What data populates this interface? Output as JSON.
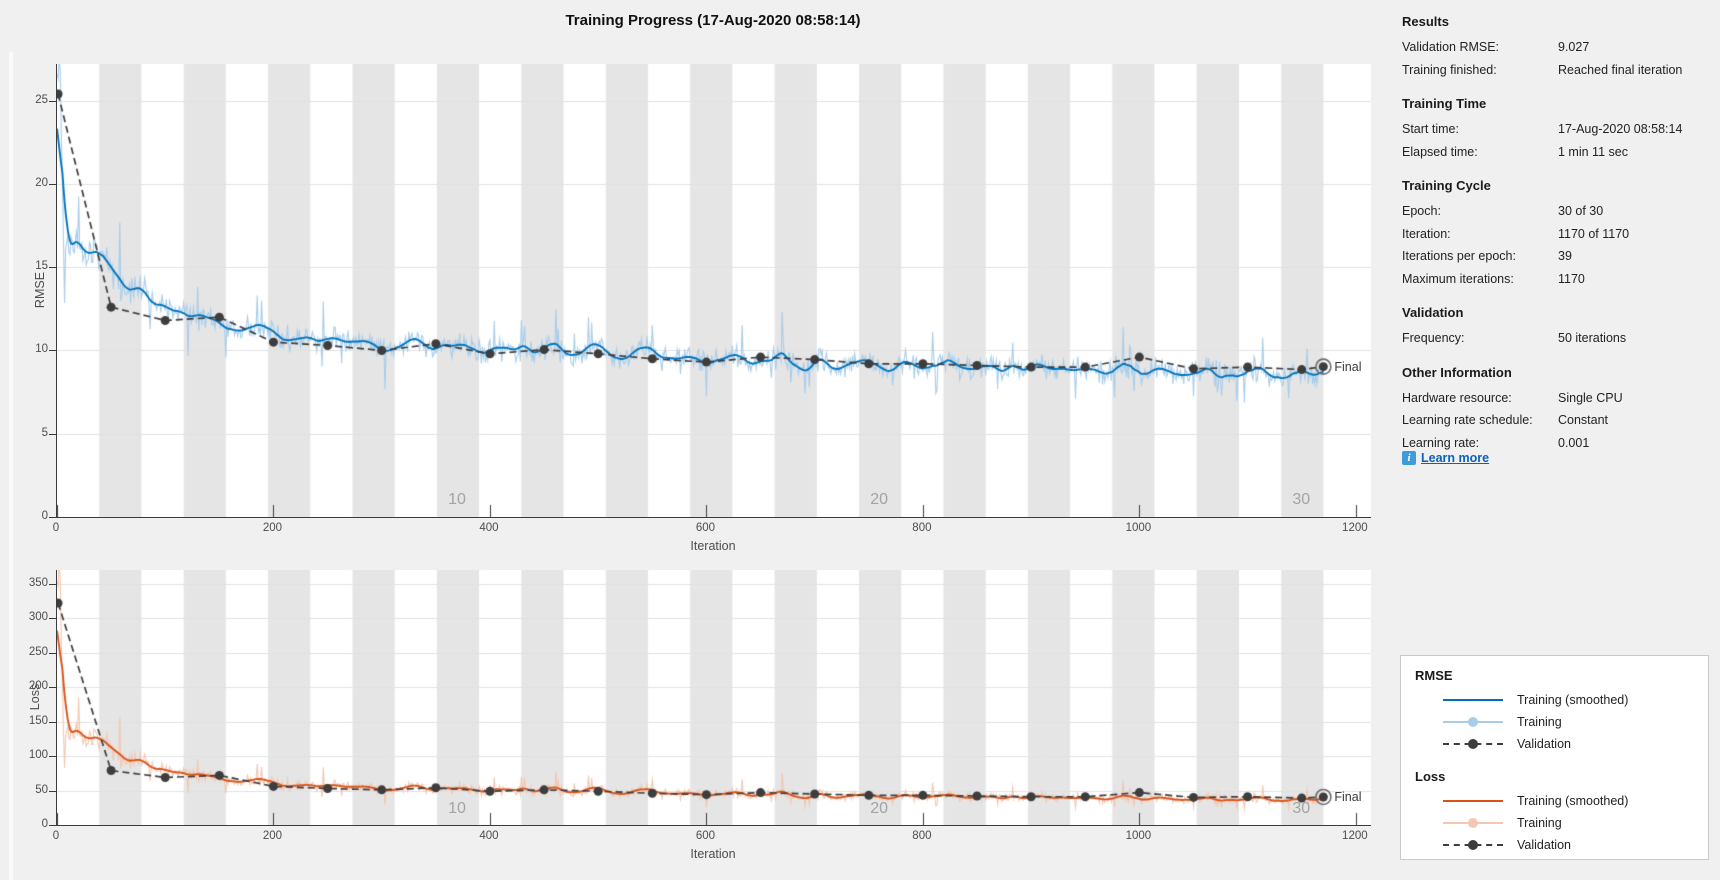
{
  "title": "Training Progress (17-Aug-2020 08:58:14)",
  "colors": {
    "background": "#F0F0F0",
    "plot_background": "#FFFFFF",
    "epoch_band": "#E5E5E5",
    "gridline": "#E2E2E2",
    "axis": "#3B3B3B",
    "tick_label": "#4D4D4D",
    "rmse_smoothed": "#0072BD",
    "rmse_training": "#A8CDEA",
    "loss_smoothed": "#D95319",
    "loss_training": "#F3C7B1",
    "validation": "#3D3D3D",
    "final_ring": "#6B6B6B",
    "epoch_label": "#A3A3A3",
    "link": "#0B61C2",
    "info_icon_bg": "#3E9CDB"
  },
  "results_panel": {
    "sections": [
      {
        "header": "Results",
        "rows": [
          {
            "label": "Validation RMSE:",
            "value": "9.027"
          },
          {
            "label": "Training finished:",
            "value": "Reached final iteration"
          }
        ]
      },
      {
        "header": "Training Time",
        "rows": [
          {
            "label": "Start time:",
            "value": "17-Aug-2020 08:58:14"
          },
          {
            "label": "Elapsed time:",
            "value": "1 min 11 sec"
          }
        ]
      },
      {
        "header": "Training Cycle",
        "rows": [
          {
            "label": "Epoch:",
            "value": "30 of 30"
          },
          {
            "label": "Iteration:",
            "value": "1170 of 1170"
          },
          {
            "label": "Iterations per epoch:",
            "value": "39"
          },
          {
            "label": "Maximum iterations:",
            "value": "1170"
          }
        ]
      },
      {
        "header": "Validation",
        "rows": [
          {
            "label": "Frequency:",
            "value": "50 iterations"
          }
        ]
      },
      {
        "header": "Other Information",
        "rows": [
          {
            "label": "Hardware resource:",
            "value": "Single CPU"
          },
          {
            "label": "Learning rate schedule:",
            "value": "Constant"
          },
          {
            "label": "Learning rate:",
            "value": "0.001"
          }
        ]
      }
    ],
    "learn_more": "Learn more",
    "info_icon_glyph": "i"
  },
  "legend": {
    "groups": [
      {
        "header": "RMSE",
        "items": [
          {
            "label": "Training (smoothed)",
            "style": "solid",
            "color": "#0072BD"
          },
          {
            "label": "Training",
            "style": "solid-dot",
            "color": "#A8CDEA"
          },
          {
            "label": "Validation",
            "style": "dashed-dot",
            "color": "#3D3D3D"
          }
        ]
      },
      {
        "header": "Loss",
        "items": [
          {
            "label": "Training (smoothed)",
            "style": "solid",
            "color": "#D95319"
          },
          {
            "label": "Training",
            "style": "solid-dot",
            "color": "#F3C7B1"
          },
          {
            "label": "Validation",
            "style": "dashed-dot",
            "color": "#3D3D3D"
          }
        ]
      }
    ]
  },
  "chart_data": [
    {
      "type": "line",
      "ylabel": "RMSE",
      "xlabel": "Iteration",
      "xlim": [
        0,
        1214
      ],
      "ylim": [
        0,
        27.2
      ],
      "xticks": [
        0,
        200,
        400,
        600,
        800,
        1000,
        1200
      ],
      "yticks": [
        0,
        5,
        10,
        15,
        20,
        25
      ],
      "epochs": 30,
      "iterations_per_epoch": 39,
      "epoch_labels": [
        10,
        20,
        30
      ],
      "grid": true,
      "series": [
        {
          "name": "Training (smoothed)",
          "source": "smoothed"
        },
        {
          "name": "Training",
          "source": "noisy"
        },
        {
          "name": "Validation",
          "points": [
            [
              1,
              25.4
            ],
            [
              50,
              12.6
            ],
            [
              100,
              11.8
            ],
            [
              150,
              12.0
            ],
            [
              200,
              10.5
            ],
            [
              250,
              10.3
            ],
            [
              300,
              10.0
            ],
            [
              350,
              10.4
            ],
            [
              400,
              9.8
            ],
            [
              450,
              10.05
            ],
            [
              500,
              9.8
            ],
            [
              550,
              9.5
            ],
            [
              600,
              9.3
            ],
            [
              650,
              9.6
            ],
            [
              700,
              9.45
            ],
            [
              750,
              9.2
            ],
            [
              800,
              9.2
            ],
            [
              850,
              9.1
            ],
            [
              900,
              9.0
            ],
            [
              950,
              9.0
            ],
            [
              1000,
              9.6
            ],
            [
              1050,
              8.9
            ],
            [
              1100,
              9.0
            ],
            [
              1150,
              8.85
            ],
            [
              1170,
              9.027
            ]
          ]
        }
      ],
      "training_base_anchors": [
        [
          0,
          26.8
        ],
        [
          3,
          27.2
        ],
        [
          6,
          16.1
        ],
        [
          25,
          16.0
        ],
        [
          45,
          15.7
        ],
        [
          55,
          14.0
        ],
        [
          65,
          13.3
        ],
        [
          75,
          14.0
        ],
        [
          90,
          12.8
        ],
        [
          105,
          12.3
        ],
        [
          120,
          12.5
        ],
        [
          135,
          11.7
        ],
        [
          150,
          12.1
        ],
        [
          165,
          11.1
        ],
        [
          180,
          11.5
        ],
        [
          200,
          11.0
        ],
        [
          215,
          10.35
        ],
        [
          235,
          10.7
        ],
        [
          255,
          10.9
        ],
        [
          270,
          10.3
        ],
        [
          285,
          10.7
        ],
        [
          300,
          10.05
        ],
        [
          330,
          10.55
        ],
        [
          350,
          10.0
        ],
        [
          370,
          10.5
        ],
        [
          395,
          9.9
        ],
        [
          415,
          10.3
        ],
        [
          435,
          9.7
        ],
        [
          455,
          10.3
        ],
        [
          475,
          9.6
        ],
        [
          500,
          10.1
        ],
        [
          520,
          9.5
        ],
        [
          540,
          10.0
        ],
        [
          560,
          9.4
        ],
        [
          580,
          9.85
        ],
        [
          600,
          9.25
        ],
        [
          625,
          9.75
        ],
        [
          645,
          9.15
        ],
        [
          665,
          9.65
        ],
        [
          685,
          9.1
        ],
        [
          705,
          9.55
        ],
        [
          725,
          9.0
        ],
        [
          745,
          9.45
        ],
        [
          765,
          8.95
        ],
        [
          785,
          9.35
        ],
        [
          805,
          8.9
        ],
        [
          825,
          9.25
        ],
        [
          845,
          8.85
        ],
        [
          865,
          9.2
        ],
        [
          885,
          8.8
        ],
        [
          905,
          9.15
        ],
        [
          925,
          8.75
        ],
        [
          945,
          9.1
        ],
        [
          965,
          8.7
        ],
        [
          985,
          9.05
        ],
        [
          1005,
          8.65
        ],
        [
          1025,
          9.0
        ],
        [
          1045,
          8.6
        ],
        [
          1065,
          8.95
        ],
        [
          1085,
          8.55
        ],
        [
          1105,
          8.9
        ],
        [
          1125,
          8.5
        ],
        [
          1145,
          8.85
        ],
        [
          1160,
          8.45
        ],
        [
          1170,
          8.6
        ]
      ],
      "max_iteration": 1170,
      "noise_seed": 20817,
      "noise_amplitude": 0.85,
      "final": {
        "iteration": 1170,
        "value": 9.027,
        "label": "Final"
      }
    },
    {
      "type": "line",
      "ylabel": "Loss",
      "xlabel": "Iteration",
      "xlim": [
        0,
        1214
      ],
      "ylim": [
        0,
        370
      ],
      "xticks": [
        0,
        200,
        400,
        600,
        800,
        1000,
        1200
      ],
      "yticks": [
        0,
        50,
        100,
        150,
        200,
        250,
        300,
        350
      ],
      "epochs": 30,
      "iterations_per_epoch": 39,
      "epoch_labels": [
        10,
        20,
        30
      ],
      "grid": true,
      "series": [
        {
          "name": "Training (smoothed)",
          "source": "smoothed"
        },
        {
          "name": "Training",
          "source": "noisy"
        },
        {
          "name": "Validation",
          "points": [
            [
              1,
              322
            ],
            [
              50,
              79
            ],
            [
              100,
              69
            ],
            [
              150,
              72
            ],
            [
              200,
              56
            ],
            [
              250,
              53
            ],
            [
              300,
              51
            ],
            [
              350,
              54
            ],
            [
              400,
              49
            ],
            [
              450,
              51
            ],
            [
              500,
              49
            ],
            [
              550,
              46
            ],
            [
              600,
              44
            ],
            [
              650,
              47
            ],
            [
              700,
              45
            ],
            [
              750,
              43
            ],
            [
              800,
              43
            ],
            [
              850,
              42
            ],
            [
              900,
              41
            ],
            [
              950,
              41
            ],
            [
              1000,
              47
            ],
            [
              1050,
              40
            ],
            [
              1100,
              41
            ],
            [
              1150,
              39
            ],
            [
              1170,
              40.7
            ]
          ]
        }
      ],
      "training_derived_from": {
        "chart": 0,
        "transform": "half-square"
      },
      "max_iteration": 1170,
      "final": {
        "iteration": 1170,
        "value": 40.7,
        "label": "Final"
      }
    }
  ]
}
